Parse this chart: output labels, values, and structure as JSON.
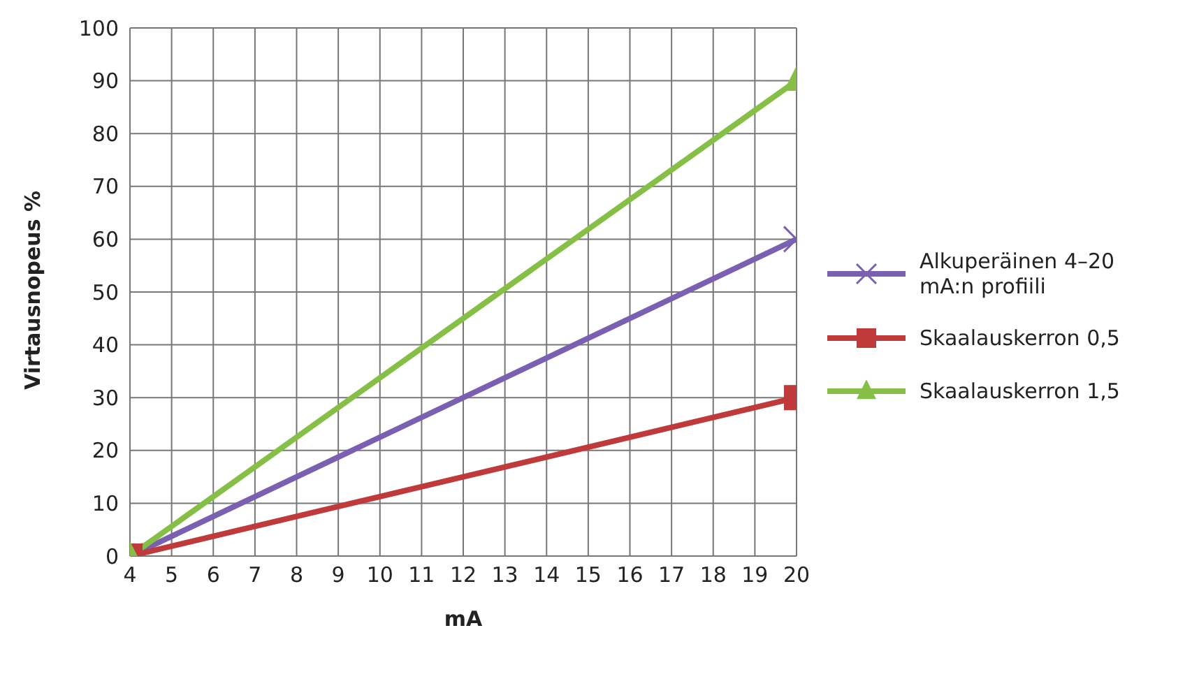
{
  "chart_data": {
    "type": "line",
    "xlabel": "mA",
    "ylabel": "Virtausnopeus %",
    "x": [
      4,
      20
    ],
    "series": [
      {
        "name": "Alkuperäinen 4–20 mA:n profiili",
        "color": "#7b5fb0",
        "values": [
          0,
          60
        ],
        "marker": "cross"
      },
      {
        "name": "Skaalauskerron 0,5",
        "color": "#c0393b",
        "values": [
          0,
          30
        ],
        "marker": "square"
      },
      {
        "name": "Skaalauskerron 1,5",
        "color": "#86bf45",
        "values": [
          0,
          90
        ],
        "marker": "triangle"
      }
    ],
    "xlim": [
      4,
      20
    ],
    "xticks": [
      4,
      5,
      6,
      7,
      8,
      9,
      10,
      11,
      12,
      13,
      14,
      15,
      16,
      17,
      18,
      19,
      20
    ],
    "ylim": [
      0,
      100
    ],
    "yticks": [
      0,
      10,
      20,
      30,
      40,
      50,
      60,
      70,
      80,
      90,
      100
    ],
    "grid": true,
    "legend": "right",
    "line_style": "solid"
  }
}
